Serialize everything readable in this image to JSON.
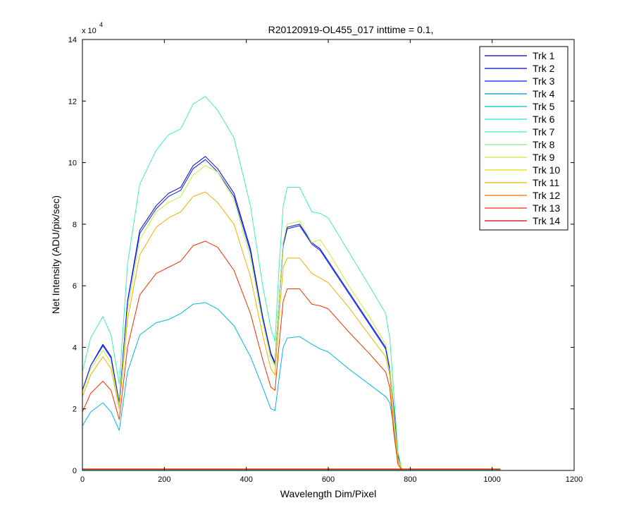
{
  "chart_data": {
    "type": "line",
    "title": "R20120919-OL455_017 inttime = 0.1,",
    "xlabel": "Wavelength Dim/Pixel",
    "ylabel": "Net Intensity (ADU/pix/sec)",
    "exponent_base": "x 10",
    "exponent_power": "4",
    "xlim": [
      0,
      1200
    ],
    "ylim": [
      0,
      140000
    ],
    "xticks": [
      0,
      200,
      400,
      600,
      800,
      1000,
      1200
    ],
    "yticks": [
      0,
      20000,
      40000,
      60000,
      80000,
      100000,
      120000,
      140000
    ],
    "ytick_labels": [
      "0",
      "2",
      "4",
      "6",
      "8",
      "10",
      "12",
      "14"
    ],
    "grid": false,
    "legend_position": "top-right",
    "series": [
      {
        "name": "Trk 1",
        "color": "#00008F",
        "x": [
          0,
          1020
        ],
        "y": [
          300,
          300
        ]
      },
      {
        "name": "Trk 2",
        "color": "#0000D0",
        "x": [
          0,
          20,
          50,
          70,
          90,
          110,
          140,
          180,
          210,
          240,
          270,
          300,
          330,
          370,
          410,
          440,
          460,
          470,
          480,
          490,
          500,
          530,
          560,
          580,
          600,
          650,
          700,
          740,
          750,
          760,
          770,
          780,
          800,
          1020
        ],
        "y": [
          26000,
          34000,
          41000,
          37000,
          22000,
          55000,
          78000,
          86000,
          90000,
          92000,
          99000,
          102000,
          98000,
          90000,
          72000,
          50000,
          38000,
          35000,
          55000,
          74000,
          79000,
          80000,
          74000,
          72000,
          68000,
          58000,
          48000,
          40000,
          33000,
          20000,
          5000,
          0,
          0,
          0
        ]
      },
      {
        "name": "Trk 3",
        "color": "#0020FF",
        "x": [
          0,
          20,
          50,
          70,
          90,
          110,
          140,
          180,
          210,
          240,
          270,
          300,
          330,
          370,
          410,
          440,
          460,
          470,
          480,
          490,
          500,
          530,
          560,
          580,
          600,
          650,
          700,
          740,
          750,
          760,
          770,
          780,
          800,
          1020
        ],
        "y": [
          26000,
          34000,
          40500,
          36500,
          21800,
          54500,
          77000,
          85000,
          89000,
          91000,
          98000,
          101000,
          97000,
          89000,
          71000,
          49500,
          37500,
          34500,
          54500,
          73000,
          78500,
          79500,
          73500,
          71500,
          67500,
          57500,
          47500,
          39500,
          32500,
          19500,
          4800,
          0,
          0,
          0
        ]
      },
      {
        "name": "Trk 4",
        "color": "#0090C8",
        "x": [
          0,
          1020
        ],
        "y": [
          250,
          250
        ]
      },
      {
        "name": "Trk 5",
        "color": "#00B8E0",
        "x": [
          0,
          20,
          50,
          70,
          90,
          110,
          140,
          180,
          210,
          240,
          270,
          300,
          330,
          370,
          410,
          440,
          460,
          470,
          480,
          490,
          500,
          530,
          560,
          580,
          600,
          650,
          700,
          740,
          750,
          760,
          770,
          780,
          800,
          1020
        ],
        "y": [
          14500,
          19000,
          22000,
          19000,
          13000,
          32000,
          44000,
          48000,
          49000,
          51000,
          54000,
          54500,
          52500,
          47000,
          37000,
          27000,
          20000,
          19500,
          30000,
          40000,
          43000,
          43500,
          41000,
          39500,
          38500,
          33000,
          28000,
          24000,
          22000,
          14000,
          3000,
          0,
          0,
          0
        ]
      },
      {
        "name": "Trk 6",
        "color": "#30E0E0",
        "x": [
          0,
          1020
        ],
        "y": [
          200,
          200
        ]
      },
      {
        "name": "Trk 7",
        "color": "#40F0B0",
        "x": [
          0,
          20,
          50,
          70,
          90,
          110,
          140,
          180,
          210,
          240,
          270,
          300,
          330,
          370,
          410,
          440,
          460,
          470,
          480,
          490,
          500,
          530,
          560,
          580,
          600,
          650,
          700,
          740,
          750,
          760,
          770,
          780,
          800,
          1020
        ],
        "y": [
          32000,
          43000,
          50000,
          44000,
          28000,
          67000,
          93000,
          104000,
          109000,
          111000,
          119000,
          121500,
          117000,
          108000,
          86000,
          60000,
          46000,
          42000,
          66000,
          86000,
          92000,
          92000,
          84000,
          83500,
          82000,
          71000,
          60000,
          51000,
          43000,
          25000,
          6000,
          0,
          0,
          0
        ]
      },
      {
        "name": "Trk 8",
        "color": "#80F080",
        "x": [
          0,
          1020
        ],
        "y": [
          350,
          350
        ]
      },
      {
        "name": "Trk 9",
        "color": "#C0F040",
        "x": [
          0,
          20,
          50,
          70,
          90,
          110,
          140,
          180,
          210,
          240,
          270,
          300,
          330,
          370,
          410,
          440,
          460,
          470,
          480,
          490,
          500,
          530,
          560,
          580,
          600,
          650,
          700,
          740,
          750,
          760,
          770,
          780,
          800,
          1020
        ],
        "y": [
          25500,
          33000,
          39000,
          35000,
          21000,
          52000,
          75000,
          84000,
          87000,
          89000,
          96000,
          99000,
          97000,
          88000,
          69000,
          48000,
          36000,
          34000,
          55000,
          74000,
          80000,
          81000,
          74000,
          75000,
          71000,
          60000,
          50000,
          41000,
          34000,
          18000,
          4000,
          0,
          0,
          0
        ]
      },
      {
        "name": "Trk 10",
        "color": "#E0E000",
        "x": [
          0,
          1020
        ],
        "y": [
          450,
          450
        ]
      },
      {
        "name": "Trk 11",
        "color": "#F0B000",
        "x": [
          0,
          20,
          50,
          70,
          90,
          110,
          140,
          180,
          210,
          240,
          270,
          300,
          330,
          370,
          410,
          440,
          460,
          470,
          480,
          490,
          500,
          530,
          560,
          580,
          600,
          650,
          700,
          740,
          750,
          760,
          770,
          780,
          800,
          1020
        ],
        "y": [
          24000,
          31000,
          37000,
          33000,
          20000,
          49000,
          70000,
          79000,
          82000,
          84000,
          89000,
          90500,
          87000,
          80000,
          63000,
          44000,
          33000,
          31000,
          50000,
          66000,
          69000,
          69000,
          64000,
          62500,
          61000,
          53000,
          44000,
          37000,
          31000,
          15000,
          3000,
          0,
          0,
          0
        ]
      },
      {
        "name": "Trk 12",
        "color": "#F07000",
        "x": [
          0,
          1020
        ],
        "y": [
          500,
          500
        ]
      },
      {
        "name": "Trk 13",
        "color": "#F03000",
        "x": [
          0,
          20,
          50,
          70,
          90,
          110,
          140,
          180,
          210,
          240,
          270,
          300,
          330,
          370,
          410,
          440,
          460,
          470,
          480,
          490,
          500,
          530,
          560,
          580,
          600,
          650,
          700,
          740,
          750,
          760,
          770,
          780,
          800,
          1020
        ],
        "y": [
          19000,
          25000,
          29000,
          26000,
          16500,
          40000,
          57000,
          64000,
          66000,
          68000,
          73000,
          74500,
          72500,
          65000,
          51000,
          36000,
          27000,
          26000,
          41000,
          55000,
          59000,
          59000,
          54000,
          53500,
          52500,
          45000,
          38000,
          32000,
          27000,
          12000,
          2000,
          0,
          0,
          0
        ]
      },
      {
        "name": "Trk 14",
        "color": "#D00000",
        "x": [
          0,
          1020
        ],
        "y": [
          400,
          400
        ]
      }
    ]
  }
}
